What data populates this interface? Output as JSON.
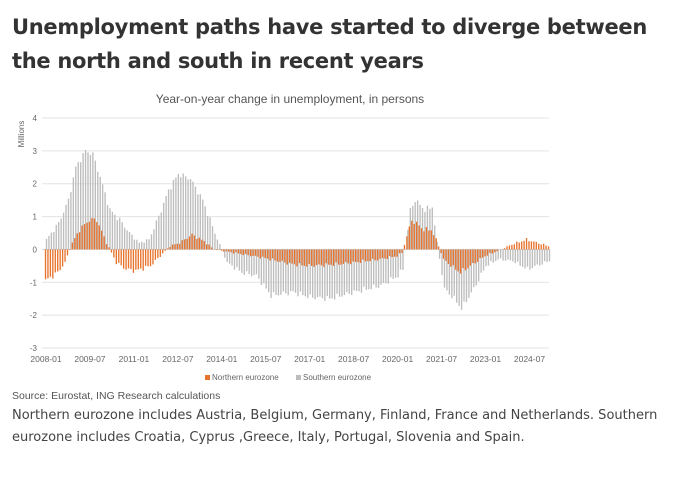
{
  "headline": "Unemployment paths have started to diverge between the north and south in recent years",
  "source": "Source: Eurostat, ING Research calculations",
  "footnote": "Northern eurozone includes Austria, Belgium, Germany, Finland, France and Netherlands. Southern eurozone includes Croatia, Cyprus ,Greece, Italy, Portugal, Slovenia and Spain.",
  "colors": {
    "northern": "#e8732c",
    "southern": "#bdbdbd",
    "grid": "#e3e3e3",
    "text": "#555555"
  },
  "chart_data": {
    "type": "bar",
    "title": "Year-on-year change in unemployment, in persons",
    "ylabel": "Millions",
    "ylim": [
      -3,
      4
    ],
    "yticks": [
      -3,
      -2,
      -1,
      0,
      1,
      2,
      3,
      4
    ],
    "x_tick_labels": [
      "2008-01",
      "2009-07",
      "2011-01",
      "2012-07",
      "2014-01",
      "2015-07",
      "2017-01",
      "2018-07",
      "2020-01",
      "2021-07",
      "2023-01",
      "2024-07"
    ],
    "x_range": [
      "2008-01",
      "2025-03"
    ],
    "x_interval": "monthly",
    "legend_position": "bottom",
    "grid": true,
    "series": [
      {
        "name": "Northern eurozone",
        "anchors": [
          [
            "2008-01",
            -0.95
          ],
          [
            "2008-06",
            -0.7
          ],
          [
            "2008-09",
            -0.4
          ],
          [
            "2008-12",
            0.2
          ],
          [
            "2009-03",
            0.6
          ],
          [
            "2009-07",
            0.9
          ],
          [
            "2009-10",
            0.9
          ],
          [
            "2010-02",
            0.2
          ],
          [
            "2010-06",
            -0.4
          ],
          [
            "2010-10",
            -0.6
          ],
          [
            "2011-02",
            -0.65
          ],
          [
            "2011-08",
            -0.5
          ],
          [
            "2011-12",
            -0.2
          ],
          [
            "2012-04",
            0.1
          ],
          [
            "2012-08",
            0.2
          ],
          [
            "2013-01",
            0.45
          ],
          [
            "2013-06",
            0.25
          ],
          [
            "2013-10",
            0.0
          ],
          [
            "2014-06",
            -0.1
          ],
          [
            "2015-06",
            -0.25
          ],
          [
            "2016-06",
            -0.45
          ],
          [
            "2017-01",
            -0.5
          ],
          [
            "2018-01",
            -0.45
          ],
          [
            "2018-07",
            -0.4
          ],
          [
            "2019-06",
            -0.3
          ],
          [
            "2020-01",
            -0.2
          ],
          [
            "2020-03",
            -0.1
          ],
          [
            "2020-05",
            0.4
          ],
          [
            "2020-07",
            0.9
          ],
          [
            "2020-12",
            0.6
          ],
          [
            "2021-03",
            0.6
          ],
          [
            "2021-05",
            0.3
          ],
          [
            "2021-08",
            -0.3
          ],
          [
            "2021-12",
            -0.55
          ],
          [
            "2022-03",
            -0.7
          ],
          [
            "2022-08",
            -0.45
          ],
          [
            "2023-01",
            -0.2
          ],
          [
            "2023-06",
            -0.05
          ],
          [
            "2023-12",
            0.15
          ],
          [
            "2024-06",
            0.3
          ],
          [
            "2025-03",
            0.1
          ]
        ]
      },
      {
        "name": "Southern eurozone",
        "anchors": [
          [
            "2008-01",
            0.3
          ],
          [
            "2008-06",
            0.8
          ],
          [
            "2008-10",
            1.5
          ],
          [
            "2009-01",
            2.5
          ],
          [
            "2009-05",
            3.0
          ],
          [
            "2009-08",
            2.9
          ],
          [
            "2009-11",
            2.2
          ],
          [
            "2010-03",
            1.2
          ],
          [
            "2010-07",
            0.9
          ],
          [
            "2010-11",
            0.5
          ],
          [
            "2011-03",
            0.2
          ],
          [
            "2011-07",
            0.3
          ],
          [
            "2011-11",
            1.0
          ],
          [
            "2012-03",
            1.8
          ],
          [
            "2012-07",
            2.3
          ],
          [
            "2012-12",
            2.15
          ],
          [
            "2013-05",
            1.5
          ],
          [
            "2013-10",
            0.5
          ],
          [
            "2014-03",
            -0.4
          ],
          [
            "2014-09",
            -0.7
          ],
          [
            "2015-03",
            -0.8
          ],
          [
            "2015-09",
            -1.4
          ],
          [
            "2016-06",
            -1.3
          ],
          [
            "2017-01",
            -1.45
          ],
          [
            "2017-09",
            -1.5
          ],
          [
            "2018-07",
            -1.3
          ],
          [
            "2019-06",
            -1.1
          ],
          [
            "2020-01",
            -0.8
          ],
          [
            "2020-03",
            -0.6
          ],
          [
            "2020-06",
            1.2
          ],
          [
            "2020-08",
            1.5
          ],
          [
            "2020-12",
            1.2
          ],
          [
            "2021-03",
            1.3
          ],
          [
            "2021-05",
            0.2
          ],
          [
            "2021-08",
            -1.2
          ],
          [
            "2021-12",
            -1.5
          ],
          [
            "2022-03",
            -1.8
          ],
          [
            "2022-08",
            -1.2
          ],
          [
            "2023-01",
            -0.5
          ],
          [
            "2023-06",
            -0.3
          ],
          [
            "2023-12",
            -0.35
          ],
          [
            "2024-06",
            -0.6
          ],
          [
            "2025-03",
            -0.35
          ]
        ]
      }
    ]
  }
}
